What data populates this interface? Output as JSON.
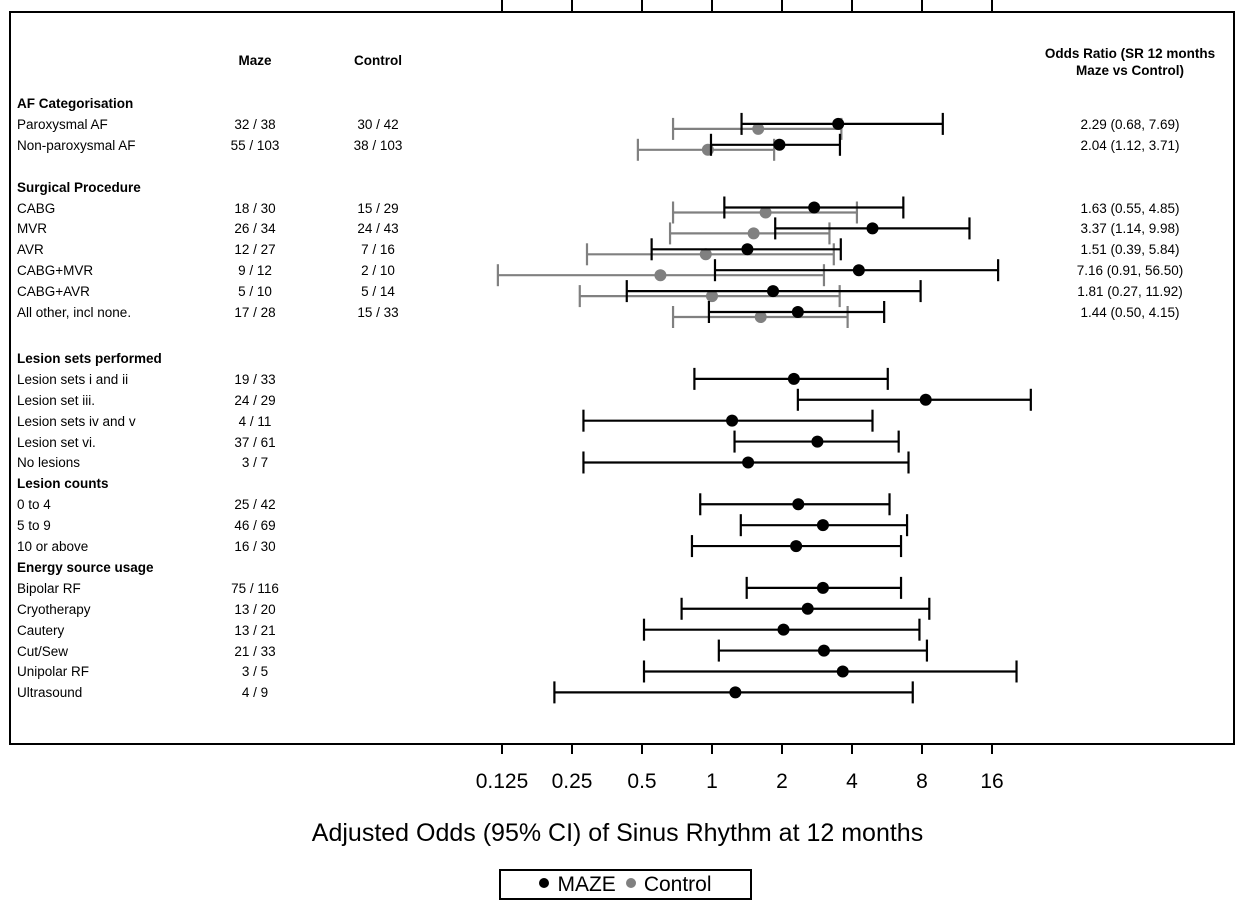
{
  "chart_data": {
    "type": "forest",
    "xlabel": "Adjusted Odds (95% CI) of Sinus Rhythm at 12 months",
    "xscale": "log2",
    "xlim": [
      0.125,
      16
    ],
    "xticks": [
      "0.125",
      "0.25",
      "0.5",
      "1",
      "2",
      "4",
      "8",
      "16"
    ],
    "xtick_values": [
      0.125,
      0.25,
      0.5,
      1,
      2,
      4,
      8,
      16
    ],
    "legend": {
      "placement": "bottom-center",
      "entries": [
        {
          "label": "MAZE",
          "color": "#000000"
        },
        {
          "label": "Control",
          "color": "#808080"
        }
      ]
    },
    "columns": {
      "maze": "Maze",
      "control": "Control",
      "or": "Odds Ratio (SR 12 months Maze vs Control)"
    },
    "rows": [
      {
        "label": "AF Categorisation",
        "header": true
      },
      {
        "label": "Paroxysmal AF",
        "maze": "32 /  38",
        "control": "30 /  42",
        "or": "2.29 (0.68, 7.69)",
        "maze_est": {
          "est": 3.49,
          "lo": 1.34,
          "hi": 9.83
        },
        "control_est": {
          "est": 1.58,
          "lo": 0.68,
          "hi": 3.6
        }
      },
      {
        "label": "Non-paroxysmal AF",
        "maze": "55 / 103",
        "control": "38 / 103",
        "or": "2.04 (1.12, 3.71)",
        "maze_est": {
          "est": 1.95,
          "lo": 0.99,
          "hi": 3.55
        },
        "control_est": {
          "est": 0.96,
          "lo": 0.48,
          "hi": 1.85
        }
      },
      {
        "label": "Surgical Procedure",
        "header": true
      },
      {
        "label": "CABG",
        "maze": "18 /  30",
        "control": "15 /  29",
        "or": "1.63 (0.55, 4.85)",
        "maze_est": {
          "est": 2.75,
          "lo": 1.13,
          "hi": 6.65
        },
        "control_est": {
          "est": 1.7,
          "lo": 0.68,
          "hi": 4.2
        }
      },
      {
        "label": "MVR",
        "maze": "26 /  34",
        "control": "24 /  43",
        "or": "3.37 (1.14, 9.98)",
        "maze_est": {
          "est": 4.9,
          "lo": 1.87,
          "hi": 12.8
        },
        "control_est": {
          "est": 1.51,
          "lo": 0.66,
          "hi": 3.2
        }
      },
      {
        "label": "AVR",
        "maze": "12 /  27",
        "control": "7 /  16",
        "or": "1.51 (0.39, 5.84)",
        "maze_est": {
          "est": 1.42,
          "lo": 0.55,
          "hi": 3.58
        },
        "control_est": {
          "est": 0.94,
          "lo": 0.29,
          "hi": 3.34
        }
      },
      {
        "label": "CABG+MVR",
        "maze": "9 /  12",
        "control": "2 /  10",
        "or": "7.16 (0.91, 56.50)",
        "maze_est": {
          "est": 4.28,
          "lo": 1.03,
          "hi": 17.0
        },
        "control_est": {
          "est": 0.6,
          "lo": 0.12,
          "hi": 3.03
        }
      },
      {
        "label": "CABG+AVR",
        "maze": "5 /  10",
        "control": "5 /  14",
        "or": "1.81 (0.27, 11.92)",
        "maze_est": {
          "est": 1.83,
          "lo": 0.43,
          "hi": 7.89
        },
        "control_est": {
          "est": 1.0,
          "lo": 0.27,
          "hi": 3.54
        }
      },
      {
        "label": "All other, incl none.",
        "maze": "17 /  28",
        "control": "15 /  33",
        "or": "1.44 (0.50, 4.15)",
        "maze_est": {
          "est": 2.34,
          "lo": 0.97,
          "hi": 5.5
        },
        "control_est": {
          "est": 1.62,
          "lo": 0.68,
          "hi": 3.83
        }
      },
      {
        "label": "Lesion sets performed",
        "header": true
      },
      {
        "label": "Lesion sets i and ii",
        "maze": "19 /  33",
        "maze_est": {
          "est": 2.25,
          "lo": 0.84,
          "hi": 5.7
        }
      },
      {
        "label": "Lesion set iii.",
        "maze": "24 /  29",
        "maze_est": {
          "est": 8.3,
          "lo": 2.34,
          "hi": 23.5
        }
      },
      {
        "label": "Lesion sets iv and v",
        "maze": "4 /  11",
        "maze_est": {
          "est": 1.22,
          "lo": 0.28,
          "hi": 4.9
        }
      },
      {
        "label": "Lesion set vi.",
        "maze": "37 /  61",
        "maze_est": {
          "est": 2.84,
          "lo": 1.25,
          "hi": 6.35
        }
      },
      {
        "label": "No lesions",
        "maze": "3 /  7",
        "maze_est": {
          "est": 1.43,
          "lo": 0.28,
          "hi": 7.0
        }
      },
      {
        "label": "Lesion counts",
        "header": true
      },
      {
        "label": "0 to 4",
        "maze": "25 /  42",
        "maze_est": {
          "est": 2.35,
          "lo": 0.89,
          "hi": 5.8
        }
      },
      {
        "label": "5 to 9",
        "maze": "46 /  69",
        "maze_est": {
          "est": 3.0,
          "lo": 1.33,
          "hi": 6.9
        }
      },
      {
        "label": "10 or above",
        "maze": "16 /  30",
        "maze_est": {
          "est": 2.3,
          "lo": 0.82,
          "hi": 6.5
        }
      },
      {
        "label": "Energy source usage",
        "header": true
      },
      {
        "label": "Bipolar RF",
        "maze": "75 / 116",
        "maze_est": {
          "est": 3.0,
          "lo": 1.41,
          "hi": 6.5
        }
      },
      {
        "label": "Cryotherapy",
        "maze": "13 /  20",
        "maze_est": {
          "est": 2.58,
          "lo": 0.74,
          "hi": 8.6
        }
      },
      {
        "label": "Cautery",
        "maze": "13 /  21",
        "maze_est": {
          "est": 2.03,
          "lo": 0.51,
          "hi": 7.8
        }
      },
      {
        "label": "Cut/Sew",
        "maze": "21 /  33",
        "maze_est": {
          "est": 3.03,
          "lo": 1.07,
          "hi": 8.4
        }
      },
      {
        "label": "Unipolar RF",
        "maze": "3 /  5",
        "maze_est": {
          "est": 3.65,
          "lo": 0.51,
          "hi": 20.4
        }
      },
      {
        "label": "Ultrasound",
        "maze": "4 /  9",
        "maze_est": {
          "est": 1.26,
          "lo": 0.21,
          "hi": 7.3
        }
      }
    ]
  }
}
